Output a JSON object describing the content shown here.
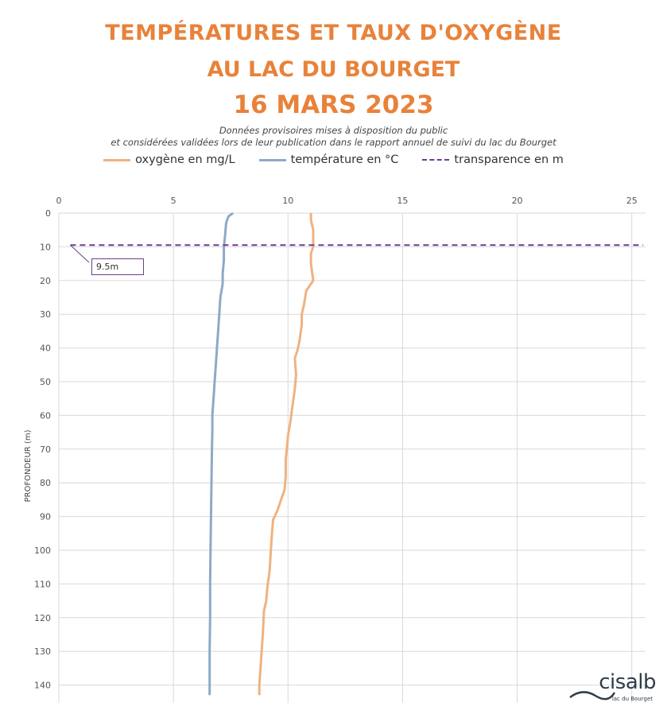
{
  "header": {
    "title_line1": "TEMPÉRATURES ET TAUX D'OXYGÈNE",
    "title_line2": "AU LAC DU BOURGET",
    "title_line3": "16 MARS 2023",
    "subtitle_line1": "Données provisoires mises à disposition du public",
    "subtitle_line2": "et considérées validées lors de leur publication dans le rapport annuel de suivi du lac du Bourget"
  },
  "logo": {
    "name": "cisalb",
    "tagline": "lac du Bourget"
  },
  "chart_data": {
    "type": "line",
    "ylabel": "PROFONDEUR (m)",
    "xlim": [
      0,
      25
    ],
    "ylim": [
      0,
      145
    ],
    "y_inverted": true,
    "x_axis_position": "top",
    "x_ticks": [
      0,
      5,
      10,
      15,
      20,
      25
    ],
    "y_ticks": [
      0,
      10,
      20,
      30,
      40,
      50,
      60,
      70,
      80,
      90,
      100,
      110,
      120,
      130,
      140
    ],
    "grid": true,
    "legend_position": "top",
    "series": [
      {
        "name": "oxygène en mg/L",
        "color": "#f0b27f",
        "points": [
          [
            11.0,
            0
          ],
          [
            11.0,
            2
          ],
          [
            11.1,
            5
          ],
          [
            11.1,
            10
          ],
          [
            11.0,
            12
          ],
          [
            11.0,
            15
          ],
          [
            11.1,
            20
          ],
          [
            10.8,
            23
          ],
          [
            10.7,
            27
          ],
          [
            10.6,
            30
          ],
          [
            10.6,
            33
          ],
          [
            10.5,
            38
          ],
          [
            10.4,
            41
          ],
          [
            10.3,
            43
          ],
          [
            10.35,
            48
          ],
          [
            10.3,
            52
          ],
          [
            10.2,
            57
          ],
          [
            10.1,
            62
          ],
          [
            10.0,
            66
          ],
          [
            9.95,
            70
          ],
          [
            9.9,
            73
          ],
          [
            9.9,
            78
          ],
          [
            9.85,
            82
          ],
          [
            9.7,
            85
          ],
          [
            9.55,
            88
          ],
          [
            9.35,
            91
          ],
          [
            9.3,
            95
          ],
          [
            9.25,
            100
          ],
          [
            9.2,
            106
          ],
          [
            9.1,
            111
          ],
          [
            9.05,
            115
          ],
          [
            8.95,
            118
          ],
          [
            8.9,
            125
          ],
          [
            8.85,
            130
          ],
          [
            8.8,
            135
          ],
          [
            8.75,
            140
          ],
          [
            8.75,
            143
          ]
        ]
      },
      {
        "name": "température en °C",
        "color": "#8ea9c8",
        "points": [
          [
            7.6,
            0
          ],
          [
            7.4,
            1
          ],
          [
            7.3,
            3
          ],
          [
            7.25,
            7
          ],
          [
            7.2,
            10
          ],
          [
            7.2,
            14
          ],
          [
            7.15,
            18
          ],
          [
            7.15,
            21
          ],
          [
            7.05,
            25
          ],
          [
            7.0,
            30
          ],
          [
            6.95,
            35
          ],
          [
            6.9,
            40
          ],
          [
            6.85,
            45
          ],
          [
            6.8,
            50
          ],
          [
            6.75,
            55
          ],
          [
            6.7,
            60
          ],
          [
            6.7,
            65
          ],
          [
            6.68,
            70
          ],
          [
            6.66,
            80
          ],
          [
            6.64,
            90
          ],
          [
            6.62,
            100
          ],
          [
            6.6,
            110
          ],
          [
            6.6,
            120
          ],
          [
            6.58,
            130
          ],
          [
            6.58,
            143
          ]
        ]
      },
      {
        "name": "transparence en m",
        "color": "#6b3d8f",
        "dashed": true,
        "points": [
          [
            0.5,
            9.5
          ],
          [
            25.5,
            9.5
          ]
        ]
      }
    ],
    "annotations": [
      {
        "text": "9.5m",
        "x": 0.5,
        "y": 9.5
      }
    ]
  }
}
